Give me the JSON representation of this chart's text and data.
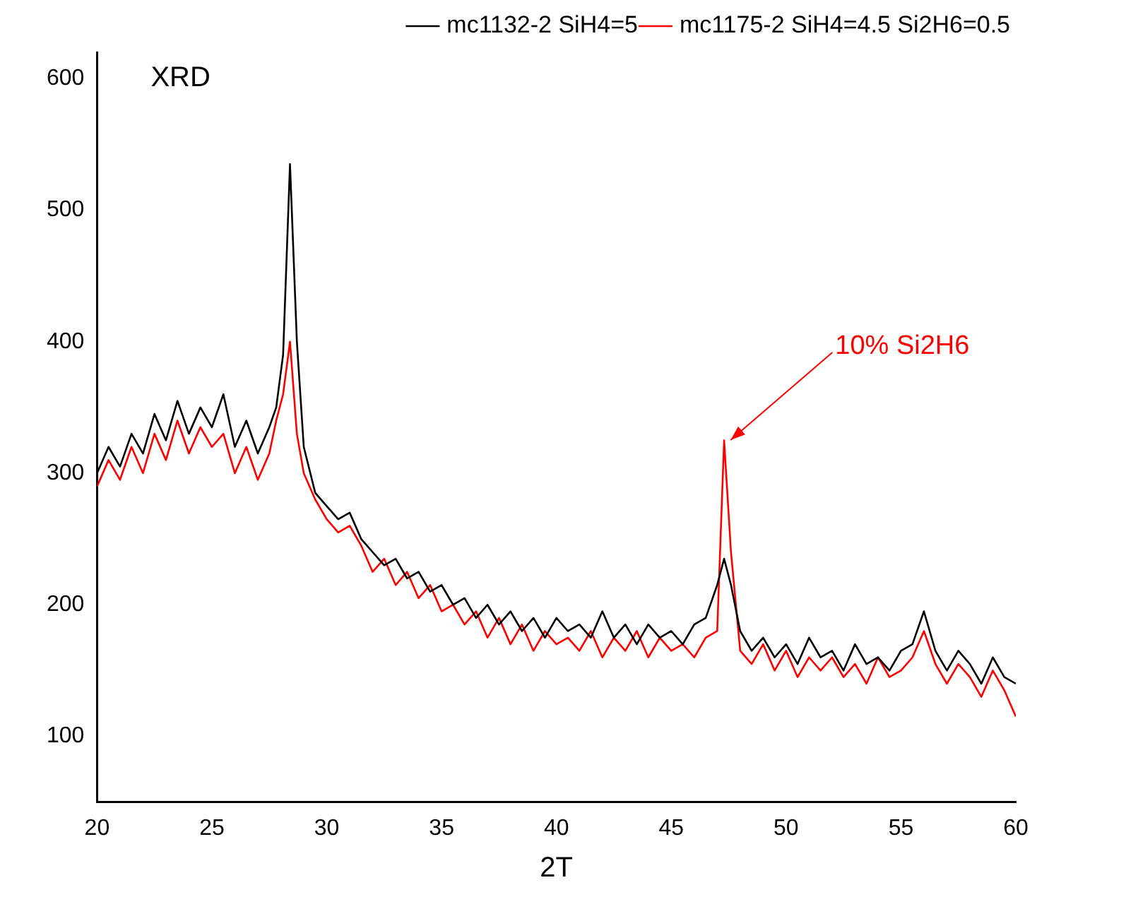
{
  "chart_data": {
    "type": "line",
    "title": "XRD",
    "xlabel": "2T",
    "xlim": [
      20,
      60
    ],
    "xticks": [
      20,
      25,
      30,
      35,
      40,
      45,
      50,
      55,
      60
    ],
    "ylim": [
      50,
      620
    ],
    "yticks": [
      100,
      200,
      300,
      400,
      500,
      600
    ],
    "grid": false,
    "legend": "top right",
    "marker": "none",
    "line_style": "solid",
    "annotations": [
      {
        "text": "10% Si2H6",
        "x": 47.4,
        "y": 322
      }
    ],
    "series": [
      {
        "name": "mc1132-2 SiH4=5",
        "color": "#000000",
        "x": [
          20,
          20.5,
          21,
          21.5,
          22,
          22.5,
          23,
          23.5,
          24,
          24.5,
          25,
          25.5,
          26,
          26.5,
          27,
          27.5,
          27.8,
          28.1,
          28.4,
          28.7,
          29,
          29.5,
          30,
          30.5,
          31,
          31.5,
          32,
          32.5,
          33,
          33.5,
          34,
          34.5,
          35,
          35.5,
          36,
          36.5,
          37,
          37.5,
          38,
          38.5,
          39,
          39.5,
          40,
          40.5,
          41,
          41.5,
          42,
          42.5,
          43,
          43.5,
          44,
          44.5,
          45,
          45.5,
          46,
          46.5,
          47,
          47.3,
          47.6,
          48,
          48.5,
          49,
          49.5,
          50,
          50.5,
          51,
          51.5,
          52,
          52.5,
          53,
          53.5,
          54,
          54.5,
          55,
          55.5,
          56,
          56.5,
          57,
          57.5,
          58,
          58.5,
          59,
          59.5,
          60
        ],
        "values": [
          300,
          320,
          305,
          330,
          315,
          345,
          325,
          355,
          330,
          350,
          335,
          360,
          320,
          340,
          315,
          335,
          350,
          390,
          535,
          400,
          320,
          285,
          275,
          265,
          270,
          250,
          240,
          230,
          235,
          220,
          225,
          210,
          215,
          200,
          205,
          190,
          200,
          185,
          195,
          180,
          190,
          175,
          190,
          180,
          185,
          175,
          195,
          175,
          185,
          170,
          185,
          175,
          180,
          170,
          185,
          190,
          215,
          235,
          215,
          180,
          165,
          175,
          160,
          170,
          155,
          175,
          160,
          165,
          150,
          170,
          155,
          160,
          150,
          165,
          170,
          195,
          165,
          150,
          165,
          155,
          140,
          160,
          145,
          140
        ]
      },
      {
        "name": "mc1175-2 SiH4=4.5 Si2H6=0.5",
        "color": "#ff0000",
        "x": [
          20,
          20.5,
          21,
          21.5,
          22,
          22.5,
          23,
          23.5,
          24,
          24.5,
          25,
          25.5,
          26,
          26.5,
          27,
          27.5,
          27.8,
          28.1,
          28.4,
          28.7,
          29,
          29.5,
          30,
          30.5,
          31,
          31.5,
          32,
          32.5,
          33,
          33.5,
          34,
          34.5,
          35,
          35.5,
          36,
          36.5,
          37,
          37.5,
          38,
          38.5,
          39,
          39.5,
          40,
          40.5,
          41,
          41.5,
          42,
          42.5,
          43,
          43.5,
          44,
          44.5,
          45,
          45.5,
          46,
          46.5,
          47,
          47.3,
          47.6,
          48,
          48.5,
          49,
          49.5,
          50,
          50.5,
          51,
          51.5,
          52,
          52.5,
          53,
          53.5,
          54,
          54.5,
          55,
          55.5,
          56,
          56.5,
          57,
          57.5,
          58,
          58.5,
          59,
          59.5,
          60
        ],
        "values": [
          290,
          310,
          295,
          320,
          300,
          330,
          310,
          340,
          315,
          335,
          320,
          330,
          300,
          320,
          295,
          315,
          340,
          360,
          400,
          330,
          300,
          280,
          265,
          255,
          260,
          245,
          225,
          235,
          215,
          225,
          205,
          215,
          195,
          200,
          185,
          195,
          175,
          190,
          170,
          185,
          165,
          180,
          170,
          175,
          165,
          180,
          160,
          175,
          165,
          180,
          160,
          175,
          165,
          170,
          160,
          175,
          180,
          325,
          240,
          165,
          155,
          170,
          150,
          165,
          145,
          160,
          150,
          160,
          145,
          155,
          140,
          160,
          145,
          150,
          160,
          180,
          155,
          140,
          155,
          145,
          130,
          150,
          135,
          115
        ]
      }
    ]
  }
}
